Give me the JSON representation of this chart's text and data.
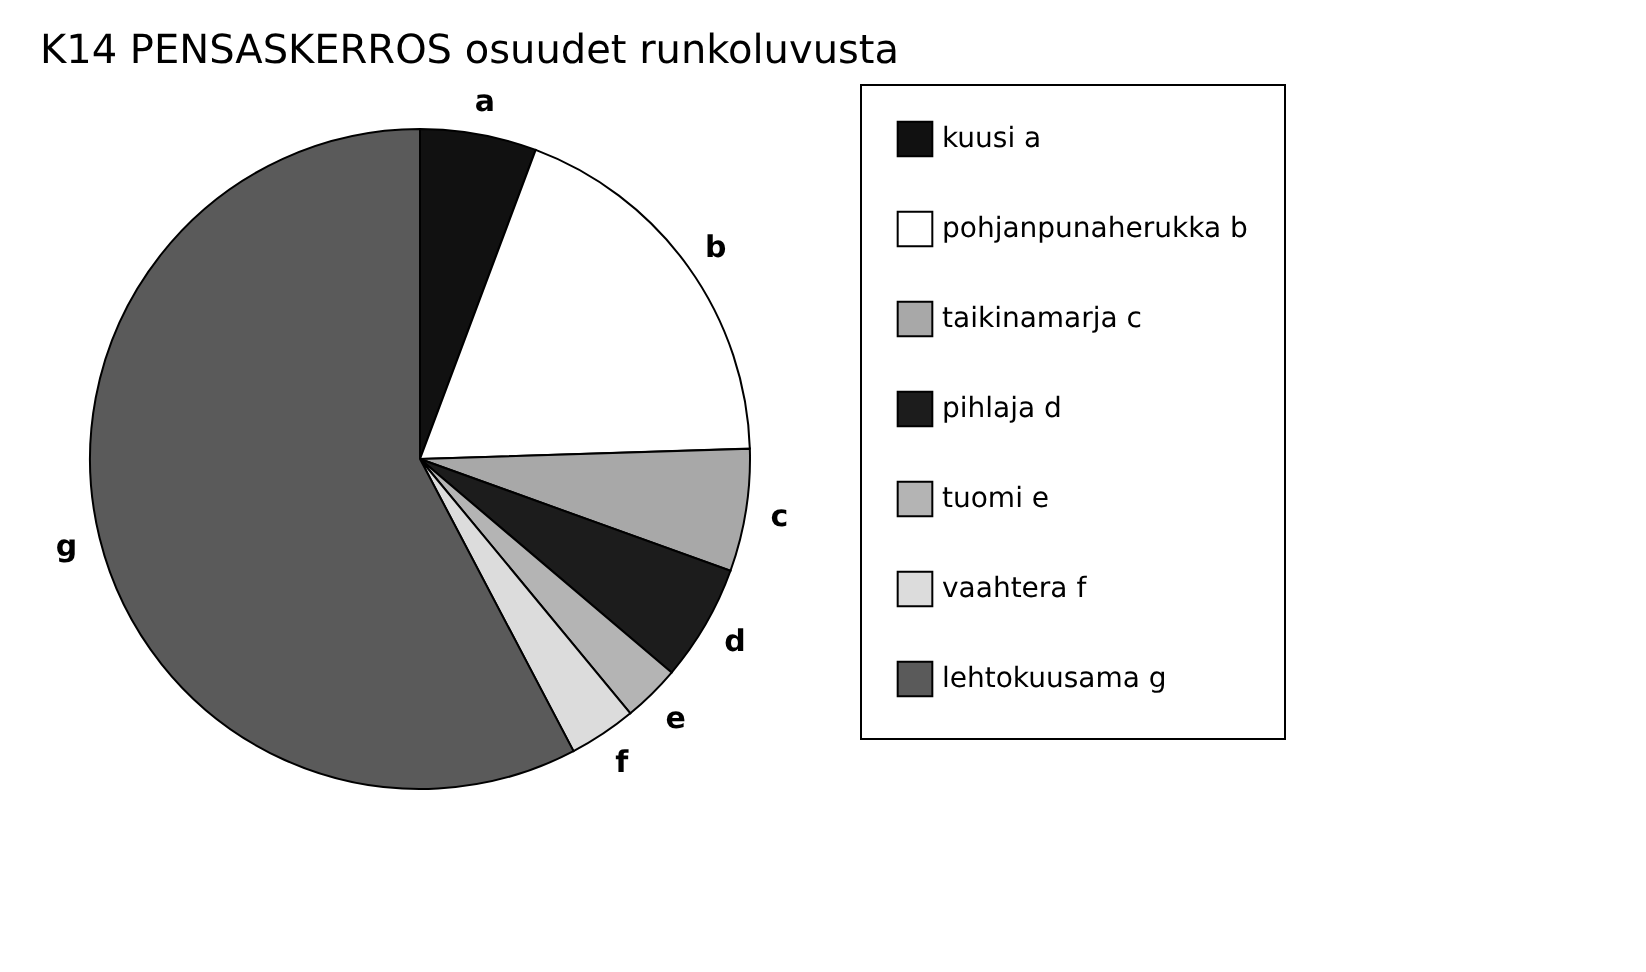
{
  "chart_data": {
    "type": "pie",
    "title": "K14  PENSASKERROS  osuudet runkoluvusta",
    "categories": [
      "kuusi a",
      "pohjanpunaherukka b",
      "taikinamarja c",
      "pihlaja d",
      "tuomi e",
      "vaahtera f",
      "lehtokuusama g"
    ],
    "values": [
      5.7,
      18.8,
      6.0,
      5.7,
      2.8,
      3.3,
      57.7
    ],
    "colors": [
      "#111111",
      "#ffffff",
      "#a8a8a8",
      "#1c1c1c",
      "#b4b4b4",
      "#dcdcdc",
      "#5a5a5a"
    ],
    "annotations": [
      {
        "text": "a",
        "x": "kuusi a"
      },
      {
        "text": "b",
        "x": "pohjanpunaherukka b"
      },
      {
        "text": "c",
        "x": "taikinamarja c"
      },
      {
        "text": "d",
        "x": "pihlaja d"
      },
      {
        "text": "e",
        "x": "tuomi e"
      },
      {
        "text": "f",
        "x": "vaahtera f"
      },
      {
        "text": "g",
        "x": "lehtokuusama g"
      }
    ],
    "legend": "right"
  }
}
